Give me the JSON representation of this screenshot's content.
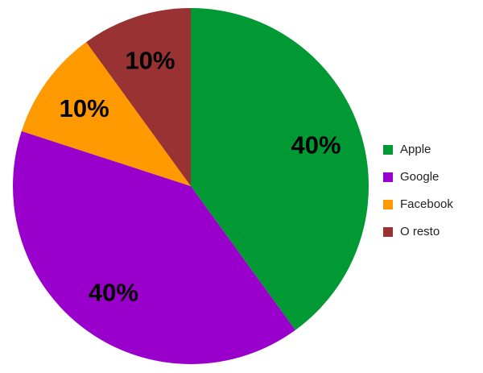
{
  "chart_data": {
    "type": "pie",
    "categories": [
      "Apple",
      "Google",
      "Facebook",
      "O resto"
    ],
    "values": [
      40,
      40,
      10,
      10
    ],
    "value_labels": [
      "40%",
      "40%",
      "10%",
      "10%"
    ],
    "colors": [
      "#009933",
      "#9900cc",
      "#ff9900",
      "#993333"
    ],
    "legend": "right"
  }
}
